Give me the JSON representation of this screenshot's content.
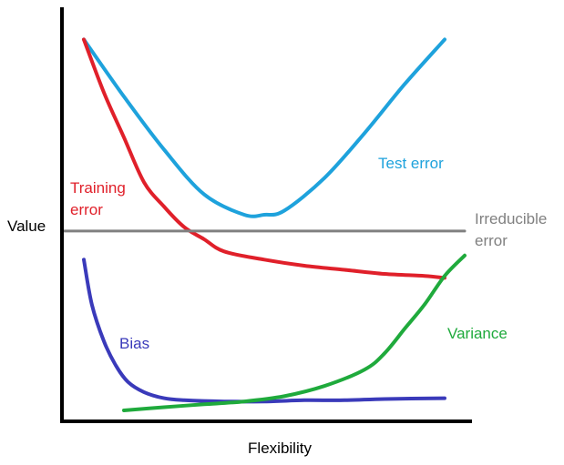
{
  "chart_data": {
    "type": "line",
    "title": "",
    "xlabel": "Flexibility",
    "ylabel": "Value",
    "xlim": [
      0,
      10
    ],
    "ylim": [
      0,
      10
    ],
    "grid": false,
    "legend": "none",
    "series": [
      {
        "name": "Test error",
        "color": "#1ea2dc",
        "x": [
          0.5,
          1.5,
          2.5,
          3.5,
          4.5,
          5.0,
          5.5,
          6.5,
          7.5,
          8.5,
          9.5
        ],
        "y": [
          9.3,
          7.9,
          6.6,
          5.5,
          5.0,
          5.0,
          5.1,
          5.9,
          7.0,
          8.2,
          9.3
        ]
      },
      {
        "name": "Training error",
        "color": "#e0202a",
        "x": [
          0.5,
          1.0,
          1.5,
          2.0,
          2.5,
          3.0,
          3.5,
          4.0,
          5.0,
          6.0,
          7.0,
          8.0,
          9.0,
          9.5
        ],
        "y": [
          9.3,
          8.0,
          6.9,
          5.8,
          5.2,
          4.7,
          4.4,
          4.1,
          3.9,
          3.75,
          3.65,
          3.55,
          3.5,
          3.45
        ]
      },
      {
        "name": "Irreducible error",
        "color": "#808080",
        "x": [
          0,
          10
        ],
        "y": [
          4.6,
          4.6
        ]
      },
      {
        "name": "Bias",
        "color": "#3a3aba",
        "x": [
          0.5,
          0.7,
          1.0,
          1.3,
          1.6,
          2.0,
          2.5,
          3.0,
          4.0,
          5.0,
          6.0,
          7.0,
          8.0,
          9.5
        ],
        "y": [
          3.9,
          2.8,
          1.9,
          1.3,
          0.9,
          0.65,
          0.5,
          0.45,
          0.42,
          0.42,
          0.45,
          0.45,
          0.48,
          0.5
        ]
      },
      {
        "name": "Variance",
        "color": "#1faa3c",
        "x": [
          1.5,
          2.5,
          3.5,
          4.5,
          5.5,
          6.5,
          7.5,
          8.0,
          8.5,
          9.0,
          9.5,
          10.0
        ],
        "y": [
          0.2,
          0.28,
          0.35,
          0.42,
          0.55,
          0.8,
          1.2,
          1.6,
          2.2,
          2.8,
          3.5,
          4.0
        ]
      }
    ],
    "annotations": [
      {
        "text": "Test error",
        "series": 0
      },
      {
        "text": "Training\nerror",
        "series": 1
      },
      {
        "text": "Irreducible\nerror",
        "series": 2
      },
      {
        "text": "Bias",
        "series": 3
      },
      {
        "text": "Variance",
        "series": 4
      }
    ]
  }
}
